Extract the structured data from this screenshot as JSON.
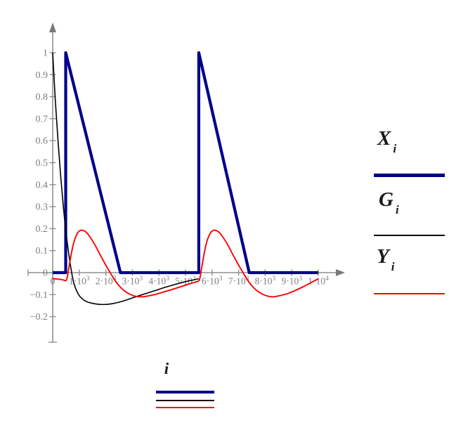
{
  "figure": {
    "background": "#ffffff",
    "axis_color": "#8f8f8f",
    "arrow_color": "#7a7a7a",
    "tick_label_color": "#7d7d7d"
  },
  "legend": {
    "position": "right",
    "entries": [
      {
        "label": "X",
        "subscript": "i",
        "color": "#00008b",
        "line_weight": "thick"
      },
      {
        "label": "G",
        "subscript": "i",
        "color": "#000000",
        "line_weight": "thin"
      },
      {
        "label": "Y",
        "subscript": "i",
        "color": "#ff0000",
        "line_weight": "thin"
      }
    ]
  },
  "x_axis": {
    "variable": "i"
  },
  "chart_data": {
    "type": "line",
    "title": "",
    "xlabel": "i",
    "ylabel": "",
    "xlim": [
      0,
      10000
    ],
    "ylim": [
      -0.2,
      1
    ],
    "grid": false,
    "legend_position": "right",
    "x_ticks": [
      {
        "value": 0,
        "mantissa": "0",
        "exponent": ""
      },
      {
        "value": 1000,
        "mantissa": "1·10",
        "exponent": "3"
      },
      {
        "value": 2000,
        "mantissa": "2·10",
        "exponent": "3"
      },
      {
        "value": 3000,
        "mantissa": "3·10",
        "exponent": "3"
      },
      {
        "value": 4000,
        "mantissa": "4·10",
        "exponent": "3"
      },
      {
        "value": 5000,
        "mantissa": "5·10",
        "exponent": "3"
      },
      {
        "value": 6000,
        "mantissa": "6·10",
        "exponent": "3"
      },
      {
        "value": 7000,
        "mantissa": "7·10",
        "exponent": "3"
      },
      {
        "value": 8000,
        "mantissa": "8·10",
        "exponent": "3"
      },
      {
        "value": 9000,
        "mantissa": "9·10",
        "exponent": "3"
      },
      {
        "value": 10000,
        "mantissa": "1·10",
        "exponent": "4"
      }
    ],
    "y_ticks": [
      {
        "value": 1,
        "label": "1"
      },
      {
        "value": 0.9,
        "label": "0.9"
      },
      {
        "value": 0.8,
        "label": "0.8"
      },
      {
        "value": 0.7,
        "label": "0.7"
      },
      {
        "value": 0.6,
        "label": "0.6"
      },
      {
        "value": 0.5,
        "label": "0.5"
      },
      {
        "value": 0.4,
        "label": "0.4"
      },
      {
        "value": 0.3,
        "label": "0.3"
      },
      {
        "value": 0.2,
        "label": "0.2"
      },
      {
        "value": 0.1,
        "label": "0.1"
      },
      {
        "value": 0,
        "label": "0"
      },
      {
        "value": -0.1,
        "label": "−0.1"
      },
      {
        "value": -0.2,
        "label": "−0.2"
      }
    ],
    "series": [
      {
        "name": "X",
        "subscript": "i",
        "color": "#00008b",
        "width": 4.2,
        "smooth": false,
        "points": [
          [
            0,
            0
          ],
          [
            490,
            0
          ],
          [
            490,
            1
          ],
          [
            2550,
            0
          ],
          [
            5500,
            0
          ],
          [
            5500,
            1
          ],
          [
            7400,
            0
          ],
          [
            10000,
            0
          ]
        ]
      },
      {
        "name": "G",
        "subscript": "i",
        "color": "#000000",
        "width": 1.6,
        "smooth": true,
        "points": [
          [
            0,
            1
          ],
          [
            100,
            0.78
          ],
          [
            200,
            0.6
          ],
          [
            300,
            0.44
          ],
          [
            400,
            0.3
          ],
          [
            500,
            0.185
          ],
          [
            600,
            0.09
          ],
          [
            700,
            0.01
          ],
          [
            800,
            -0.05
          ],
          [
            950,
            -0.095
          ],
          [
            1100,
            -0.118
          ],
          [
            1300,
            -0.133
          ],
          [
            1600,
            -0.142
          ],
          [
            1900,
            -0.145
          ],
          [
            2200,
            -0.142
          ],
          [
            2600,
            -0.131
          ],
          [
            3000,
            -0.115
          ],
          [
            3400,
            -0.099
          ],
          [
            3800,
            -0.084
          ],
          [
            4200,
            -0.068
          ],
          [
            4600,
            -0.054
          ],
          [
            5000,
            -0.041
          ],
          [
            5300,
            -0.033
          ],
          [
            5500,
            -0.028
          ]
        ]
      },
      {
        "name": "Y",
        "subscript": "i",
        "color": "#ff0000",
        "width": 1.9,
        "smooth": true,
        "points": [
          [
            0,
            -0.027
          ],
          [
            150,
            -0.029
          ],
          [
            300,
            -0.031
          ],
          [
            420,
            -0.034
          ],
          [
            490,
            -0.036
          ],
          [
            540,
            -0.025
          ],
          [
            620,
            0.03
          ],
          [
            700,
            0.085
          ],
          [
            800,
            0.14
          ],
          [
            900,
            0.172
          ],
          [
            1000,
            0.189
          ],
          [
            1100,
            0.193
          ],
          [
            1250,
            0.185
          ],
          [
            1400,
            0.163
          ],
          [
            1600,
            0.124
          ],
          [
            1800,
            0.078
          ],
          [
            2000,
            0.034
          ],
          [
            2150,
            0.003
          ],
          [
            2300,
            -0.027
          ],
          [
            2500,
            -0.06
          ],
          [
            2700,
            -0.083
          ],
          [
            2900,
            -0.098
          ],
          [
            3100,
            -0.107
          ],
          [
            3300,
            -0.11
          ],
          [
            3500,
            -0.108
          ],
          [
            3800,
            -0.101
          ],
          [
            4100,
            -0.091
          ],
          [
            4400,
            -0.08
          ],
          [
            4800,
            -0.065
          ],
          [
            5100,
            -0.053
          ],
          [
            5350,
            -0.044
          ],
          [
            5490,
            -0.038
          ],
          [
            5540,
            -0.026
          ],
          [
            5620,
            0.03
          ],
          [
            5700,
            0.085
          ],
          [
            5800,
            0.14
          ],
          [
            5900,
            0.172
          ],
          [
            6000,
            0.189
          ],
          [
            6100,
            0.193
          ],
          [
            6250,
            0.185
          ],
          [
            6400,
            0.163
          ],
          [
            6600,
            0.124
          ],
          [
            6800,
            0.078
          ],
          [
            7000,
            0.034
          ],
          [
            7150,
            0.003
          ],
          [
            7300,
            -0.027
          ],
          [
            7500,
            -0.06
          ],
          [
            7700,
            -0.083
          ],
          [
            7900,
            -0.098
          ],
          [
            8100,
            -0.107
          ],
          [
            8300,
            -0.11
          ],
          [
            8500,
            -0.106
          ],
          [
            8800,
            -0.097
          ],
          [
            9100,
            -0.083
          ],
          [
            9400,
            -0.066
          ],
          [
            9700,
            -0.047
          ],
          [
            10000,
            -0.028
          ]
        ]
      }
    ]
  }
}
